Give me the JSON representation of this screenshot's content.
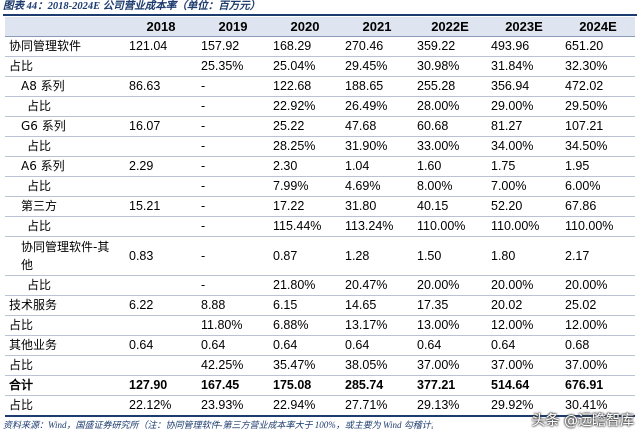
{
  "caption": "图表 44：2018-2024E 公司营业成本率（单位：百万元）",
  "table": {
    "headers": [
      "",
      "2018",
      "2019",
      "2020",
      "2021",
      "2022E",
      "2023E",
      "2024E"
    ],
    "rows": [
      {
        "label": "协同管理软件",
        "cells": [
          "121.04",
          "157.92",
          "168.29",
          "270.46",
          "359.22",
          "493.96",
          "651.20"
        ]
      },
      {
        "label": "占比",
        "cells": [
          "",
          "25.35%",
          "25.04%",
          "29.45%",
          "30.98%",
          "31.84%",
          "32.30%"
        ]
      },
      {
        "label": "A8 系列",
        "cells": [
          "86.63",
          "-",
          "122.68",
          "188.65",
          "255.28",
          "356.94",
          "472.02"
        ]
      },
      {
        "label": "占比",
        "cells": [
          "",
          "-",
          "22.92%",
          "26.49%",
          "28.00%",
          "29.00%",
          "29.50%"
        ]
      },
      {
        "label": "G6 系列",
        "cells": [
          "16.07",
          "-",
          "25.22",
          "47.68",
          "60.68",
          "81.27",
          "107.21"
        ]
      },
      {
        "label": "占比",
        "cells": [
          "",
          "-",
          "28.25%",
          "31.90%",
          "33.00%",
          "34.00%",
          "34.50%"
        ]
      },
      {
        "label": "A6 系列",
        "cells": [
          "2.29",
          "-",
          "2.30",
          "1.04",
          "1.60",
          "1.75",
          "1.95"
        ]
      },
      {
        "label": "占比",
        "cells": [
          "",
          "-",
          "7.99%",
          "4.69%",
          "8.00%",
          "7.00%",
          "6.00%"
        ]
      },
      {
        "label": "第三方",
        "cells": [
          "15.21",
          "-",
          "17.22",
          "31.80",
          "40.15",
          "52.20",
          "67.86"
        ]
      },
      {
        "label": "占比",
        "cells": [
          "",
          "-",
          "115.44%",
          "113.24%",
          "110.00%",
          "110.00%",
          "110.00%"
        ]
      },
      {
        "label": "协同管理软件-其他",
        "cells": [
          "0.83",
          "-",
          "0.87",
          "1.28",
          "1.50",
          "1.80",
          "2.17"
        ]
      },
      {
        "label": "占比",
        "cells": [
          "",
          "-",
          "21.80%",
          "20.47%",
          "20.00%",
          "20.00%",
          "20.00%"
        ]
      },
      {
        "label": "技术服务",
        "cells": [
          "6.22",
          "8.88",
          "6.15",
          "14.65",
          "17.35",
          "20.02",
          "25.02"
        ]
      },
      {
        "label": "占比",
        "cells": [
          "",
          "11.80%",
          "6.88%",
          "13.17%",
          "13.00%",
          "12.00%",
          "12.00%"
        ]
      },
      {
        "label": "其他业务",
        "cells": [
          "0.64",
          "0.64",
          "0.64",
          "0.64",
          "0.64",
          "0.64",
          "0.68"
        ]
      },
      {
        "label": "占比",
        "cells": [
          "",
          "42.25%",
          "35.47%",
          "38.05%",
          "37.00%",
          "37.00%",
          "37.00%"
        ]
      },
      {
        "label": "合计",
        "cells": [
          "127.90",
          "167.45",
          "175.08",
          "285.74",
          "377.21",
          "514.64",
          "676.91"
        ]
      },
      {
        "label": "占比",
        "cells": [
          "22.12%",
          "23.93%",
          "22.94%",
          "27.71%",
          "29.13%",
          "29.92%",
          "30.41%"
        ]
      }
    ]
  },
  "footer": "资料来源：Wind，国盛证券研究所（注：协同管理软件-第三方营业成本率大于 100%，或主要为 Wind 勾稽计算误差）",
  "watermark": "头条 @远瞻智库"
}
